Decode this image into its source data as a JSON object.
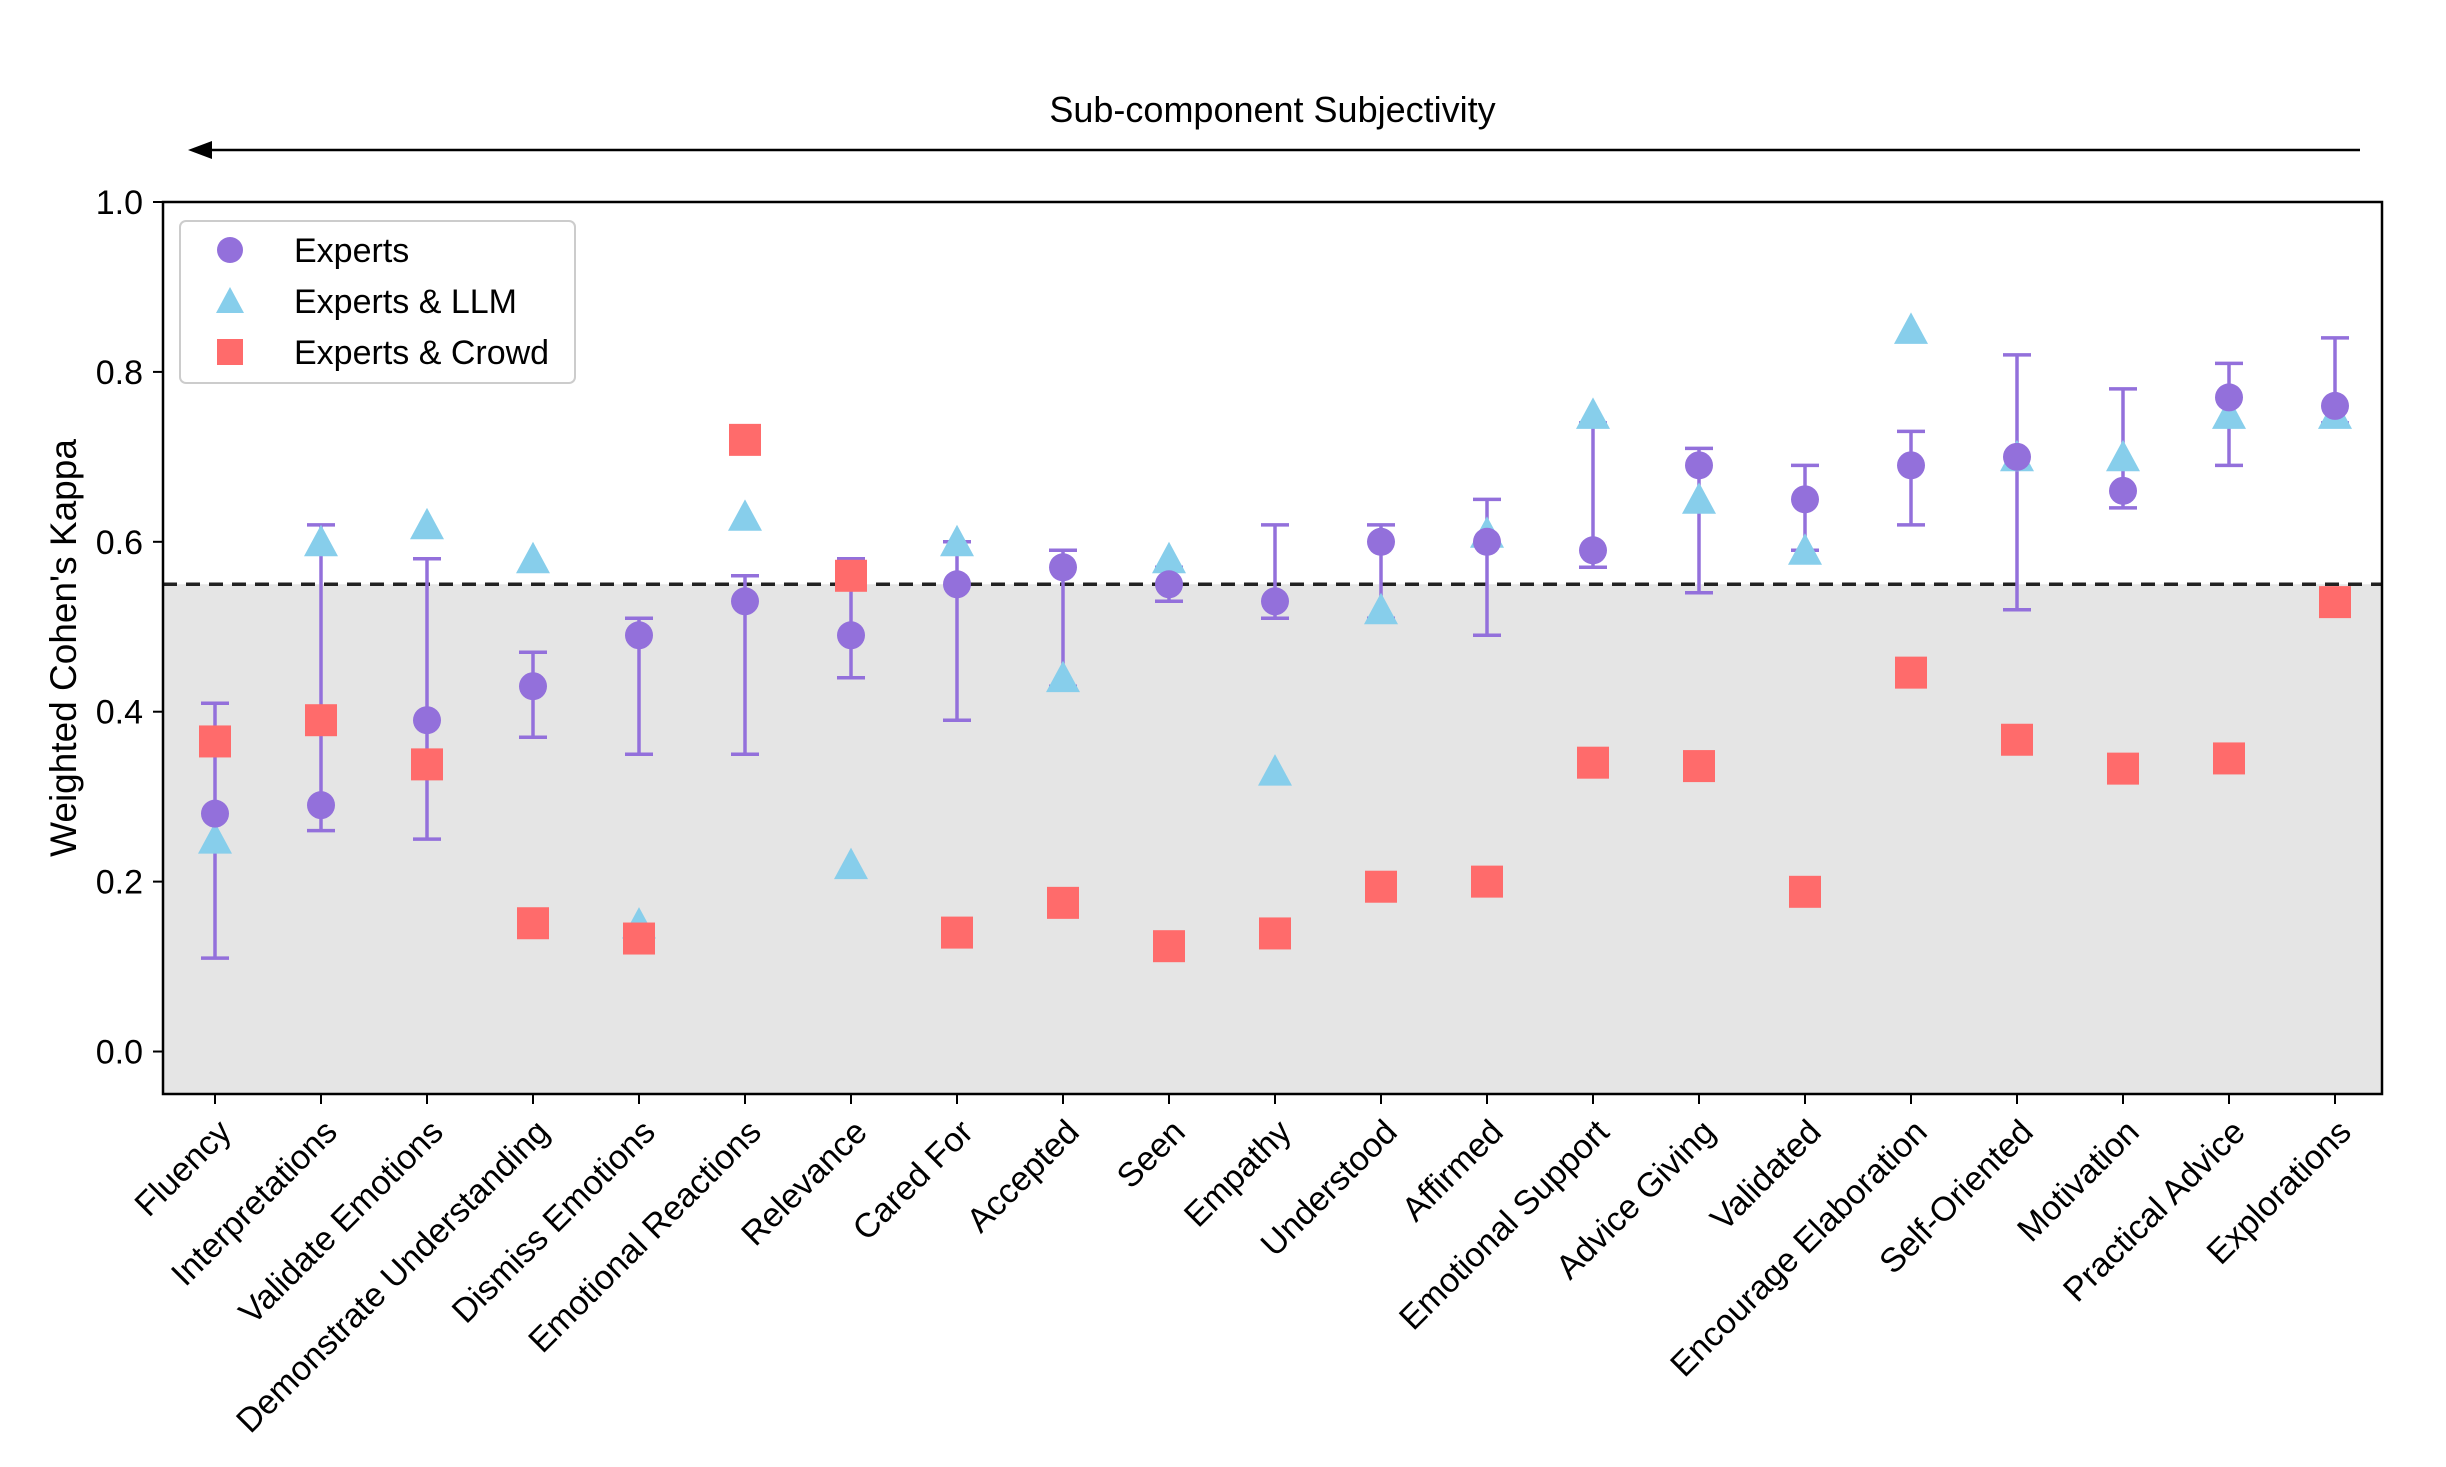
{
  "chart_data": {
    "type": "scatter",
    "title": "",
    "annotation": "Sub-component Subjectivity",
    "xlabel": "",
    "ylabel": "Weighted Cohen's Kappa",
    "ylim": [
      -0.05,
      1.0
    ],
    "yticks": [
      "0.0",
      "0.2",
      "0.4",
      "0.6",
      "0.8",
      "1.0"
    ],
    "threshold": 0.55,
    "grid": false,
    "legend_position": "top-left",
    "colors": {
      "experts": "#9370DB",
      "llm": "#87CEEB",
      "crowd": "#FF6B6B",
      "shade": "#E5E5E5",
      "threshold_line": "#222222"
    },
    "categories": [
      "Fluency",
      "Interpretations",
      "Validate Emotions",
      "Demonstrate Understanding",
      "Dismiss Emotions",
      "Emotional Reactions",
      "Relevance",
      "Cared For",
      "Accepted",
      "Seen",
      "Empathy",
      "Understood",
      "Affirmed",
      "Emotional Support",
      "Advice Giving",
      "Validated",
      "Encourage Elaboration",
      "Self-Oriented",
      "Motivation",
      "Practical Advice",
      "Explorations"
    ],
    "series": [
      {
        "name": "Experts",
        "marker": "circle",
        "values": [
          0.28,
          0.29,
          0.39,
          0.43,
          0.49,
          0.53,
          0.49,
          0.55,
          0.57,
          0.55,
          0.53,
          0.6,
          0.6,
          0.59,
          0.69,
          0.65,
          0.69,
          0.7,
          0.66,
          0.77,
          0.76
        ],
        "error_low": [
          0.11,
          0.26,
          0.25,
          0.37,
          0.35,
          0.35,
          0.44,
          0.39,
          0.43,
          0.53,
          0.51,
          0.51,
          0.49,
          0.57,
          0.54,
          0.59,
          0.62,
          0.52,
          0.64,
          0.69,
          0.74
        ],
        "error_high": [
          0.41,
          0.62,
          0.58,
          0.47,
          0.51,
          0.56,
          0.58,
          0.6,
          0.59,
          0.57,
          0.62,
          0.62,
          0.65,
          0.74,
          0.71,
          0.69,
          0.73,
          0.82,
          0.78,
          0.81,
          0.84
        ]
      },
      {
        "name": "Experts & LLM",
        "marker": "triangle",
        "values": [
          0.25,
          0.6,
          0.62,
          0.58,
          0.15,
          0.63,
          0.22,
          0.6,
          0.44,
          0.58,
          0.33,
          0.52,
          0.61,
          0.75,
          0.65,
          0.59,
          0.85,
          0.7,
          0.7,
          0.75,
          0.75
        ]
      },
      {
        "name": "Experts & Crowd",
        "marker": "square",
        "values": [
          0.365,
          0.39,
          0.338,
          0.151,
          0.133,
          0.72,
          0.56,
          0.14,
          0.175,
          0.124,
          0.139,
          0.194,
          0.2,
          0.34,
          0.336,
          0.188,
          0.446,
          0.367,
          0.333,
          0.345,
          0.529
        ]
      }
    ]
  }
}
